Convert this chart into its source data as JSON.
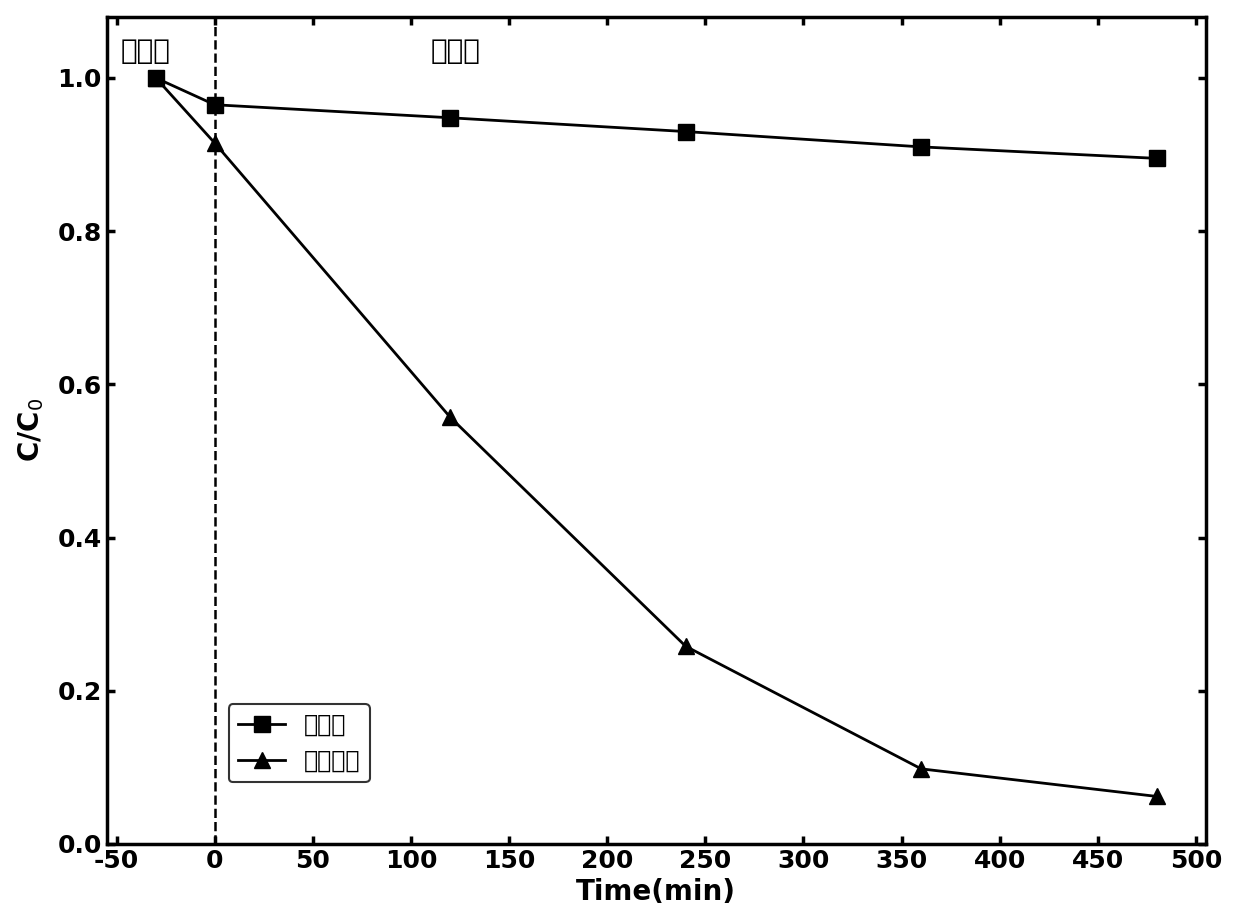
{
  "series1_label": "空白样",
  "series2_label": "陶瓷窐层",
  "series1_x": [
    -30,
    0,
    120,
    240,
    360,
    480
  ],
  "series1_y": [
    1.0,
    0.965,
    0.948,
    0.93,
    0.91,
    0.895
  ],
  "series2_x": [
    -30,
    0,
    120,
    240,
    360,
    480
  ],
  "series2_y": [
    1.0,
    0.915,
    0.557,
    0.258,
    0.098,
    0.062
  ],
  "xlabel": "Time(min)",
  "ylabel": "C/C$_0$",
  "xlim": [
    -55,
    505
  ],
  "ylim": [
    0.0,
    1.08
  ],
  "yticks": [
    0.0,
    0.2,
    0.4,
    0.6,
    0.8,
    1.0
  ],
  "xticks": [
    -50,
    0,
    50,
    100,
    150,
    200,
    250,
    300,
    350,
    400,
    450,
    500
  ],
  "annotation_dark": "暗反应",
  "annotation_light": "光反应",
  "vline_x": 0,
  "color": "#000000",
  "linewidth": 2.0,
  "markersize": 11,
  "title_fontsize": 20,
  "label_fontsize": 20,
  "tick_fontsize": 18,
  "legend_fontsize": 17
}
